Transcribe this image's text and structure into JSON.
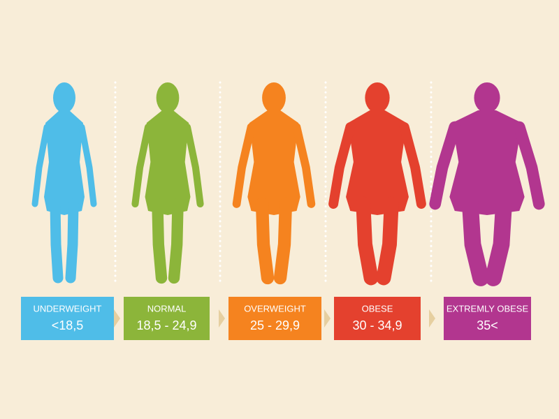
{
  "items": [
    {
      "label": "UNDERWEIGHT",
      "range": "<18,5",
      "color": "#4fbde8"
    },
    {
      "label": "NORMAL",
      "range": "18,5 - 24,9",
      "color": "#8cb53a"
    },
    {
      "label": "OVERWEIGHT",
      "range": "25 - 29,9",
      "color": "#f5831f"
    },
    {
      "label": "OBESE",
      "range": "30 - 34,9",
      "color": "#e4412e"
    },
    {
      "label": "EXTREMLY OBESE",
      "range": "35<",
      "color": "#b2368f"
    }
  ]
}
